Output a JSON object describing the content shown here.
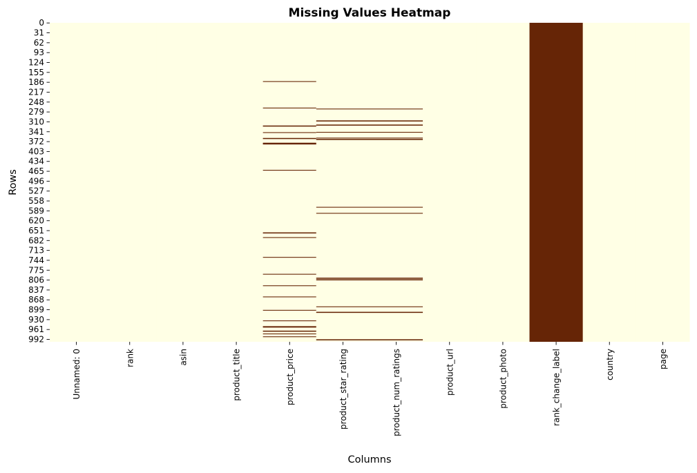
{
  "chart_data": {
    "type": "heatmap",
    "title": "Missing Values Heatmap",
    "xlabel": "Columns",
    "ylabel": "Rows",
    "columns": [
      "Unnamed: 0",
      "rank",
      "asin",
      "product_title",
      "product_price",
      "product_star_rating",
      "product_num_ratings",
      "product_url",
      "product_photo",
      "rank_change_label",
      "country",
      "page"
    ],
    "row_count": 1000,
    "y_ticks": [
      0,
      31,
      62,
      93,
      124,
      155,
      186,
      217,
      248,
      279,
      310,
      341,
      372,
      403,
      434,
      465,
      496,
      527,
      558,
      589,
      620,
      651,
      682,
      713,
      744,
      775,
      806,
      837,
      868,
      899,
      930,
      961,
      992
    ],
    "colors": {
      "present": "#ffffe5",
      "missing": "#662506"
    },
    "grid": false,
    "legend": "none",
    "missing": {
      "product_price": [
        183,
        266,
        322,
        323,
        343,
        361,
        362,
        376,
        377,
        378,
        379,
        461,
        657,
        658,
        672,
        734,
        787,
        823,
        858,
        900,
        933,
        951,
        952,
        953,
        965,
        966,
        974,
        983
      ],
      "product_star_rating": [
        269,
        306,
        307,
        319,
        320,
        342,
        360,
        364,
        365,
        577,
        596,
        799,
        800,
        804,
        805,
        889,
        906,
        907,
        992,
        993
      ],
      "product_num_ratings": [
        269,
        306,
        307,
        319,
        320,
        342,
        360,
        364,
        365,
        577,
        596,
        799,
        800,
        804,
        805,
        889,
        906,
        907,
        992,
        993
      ],
      "rank_change_label": "all"
    }
  }
}
